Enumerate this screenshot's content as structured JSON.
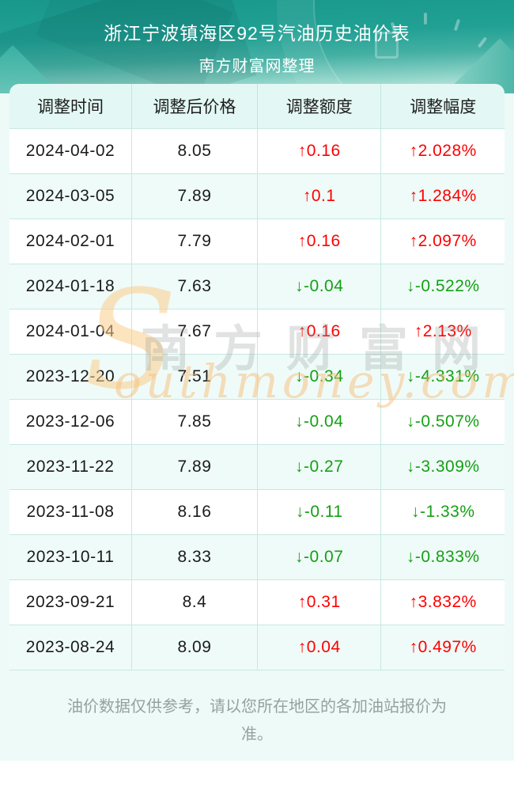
{
  "page": {
    "footer_note": "油价数据仅供参考，请以您所在地区的各加油站报价为准。"
  },
  "watermark": {
    "s_glyph": "S",
    "cn_text": "南方财富网",
    "en_text": "outhmoney.com"
  },
  "colors": {
    "up": "#fe0000",
    "down": "#14a014",
    "accent_teal": "#1b9a8e",
    "header_bg": "#e3f8f4",
    "alt_row_bg": "#effbf8",
    "page_bg": "#eefaf7",
    "watermark_orange": "#f8c480"
  },
  "chart_data": {
    "type": "table",
    "title": "浙江宁波镇海区92号汽油历史油价表",
    "subtitle": "南方财富网整理",
    "columns": [
      "调整时间",
      "调整后价格",
      "调整额度",
      "调整幅度"
    ],
    "rows": [
      {
        "date": "2024-04-02",
        "price": "8.05",
        "change": "↑0.16",
        "pct": "↑2.028%",
        "direction": "up"
      },
      {
        "date": "2024-03-05",
        "price": "7.89",
        "change": "↑0.1",
        "pct": "↑1.284%",
        "direction": "up"
      },
      {
        "date": "2024-02-01",
        "price": "7.79",
        "change": "↑0.16",
        "pct": "↑2.097%",
        "direction": "up"
      },
      {
        "date": "2024-01-18",
        "price": "7.63",
        "change": "↓-0.04",
        "pct": "↓-0.522%",
        "direction": "down"
      },
      {
        "date": "2024-01-04",
        "price": "7.67",
        "change": "↑0.16",
        "pct": "↑2.13%",
        "direction": "up"
      },
      {
        "date": "2023-12-20",
        "price": "7.51",
        "change": "↓-0.34",
        "pct": "↓-4.331%",
        "direction": "down"
      },
      {
        "date": "2023-12-06",
        "price": "7.85",
        "change": "↓-0.04",
        "pct": "↓-0.507%",
        "direction": "down"
      },
      {
        "date": "2023-11-22",
        "price": "7.89",
        "change": "↓-0.27",
        "pct": "↓-3.309%",
        "direction": "down"
      },
      {
        "date": "2023-11-08",
        "price": "8.16",
        "change": "↓-0.11",
        "pct": "↓-1.33%",
        "direction": "down"
      },
      {
        "date": "2023-10-11",
        "price": "8.33",
        "change": "↓-0.07",
        "pct": "↓-0.833%",
        "direction": "down"
      },
      {
        "date": "2023-09-21",
        "price": "8.4",
        "change": "↑0.31",
        "pct": "↑3.832%",
        "direction": "up"
      },
      {
        "date": "2023-08-24",
        "price": "8.09",
        "change": "↑0.04",
        "pct": "↑0.497%",
        "direction": "up"
      }
    ]
  }
}
